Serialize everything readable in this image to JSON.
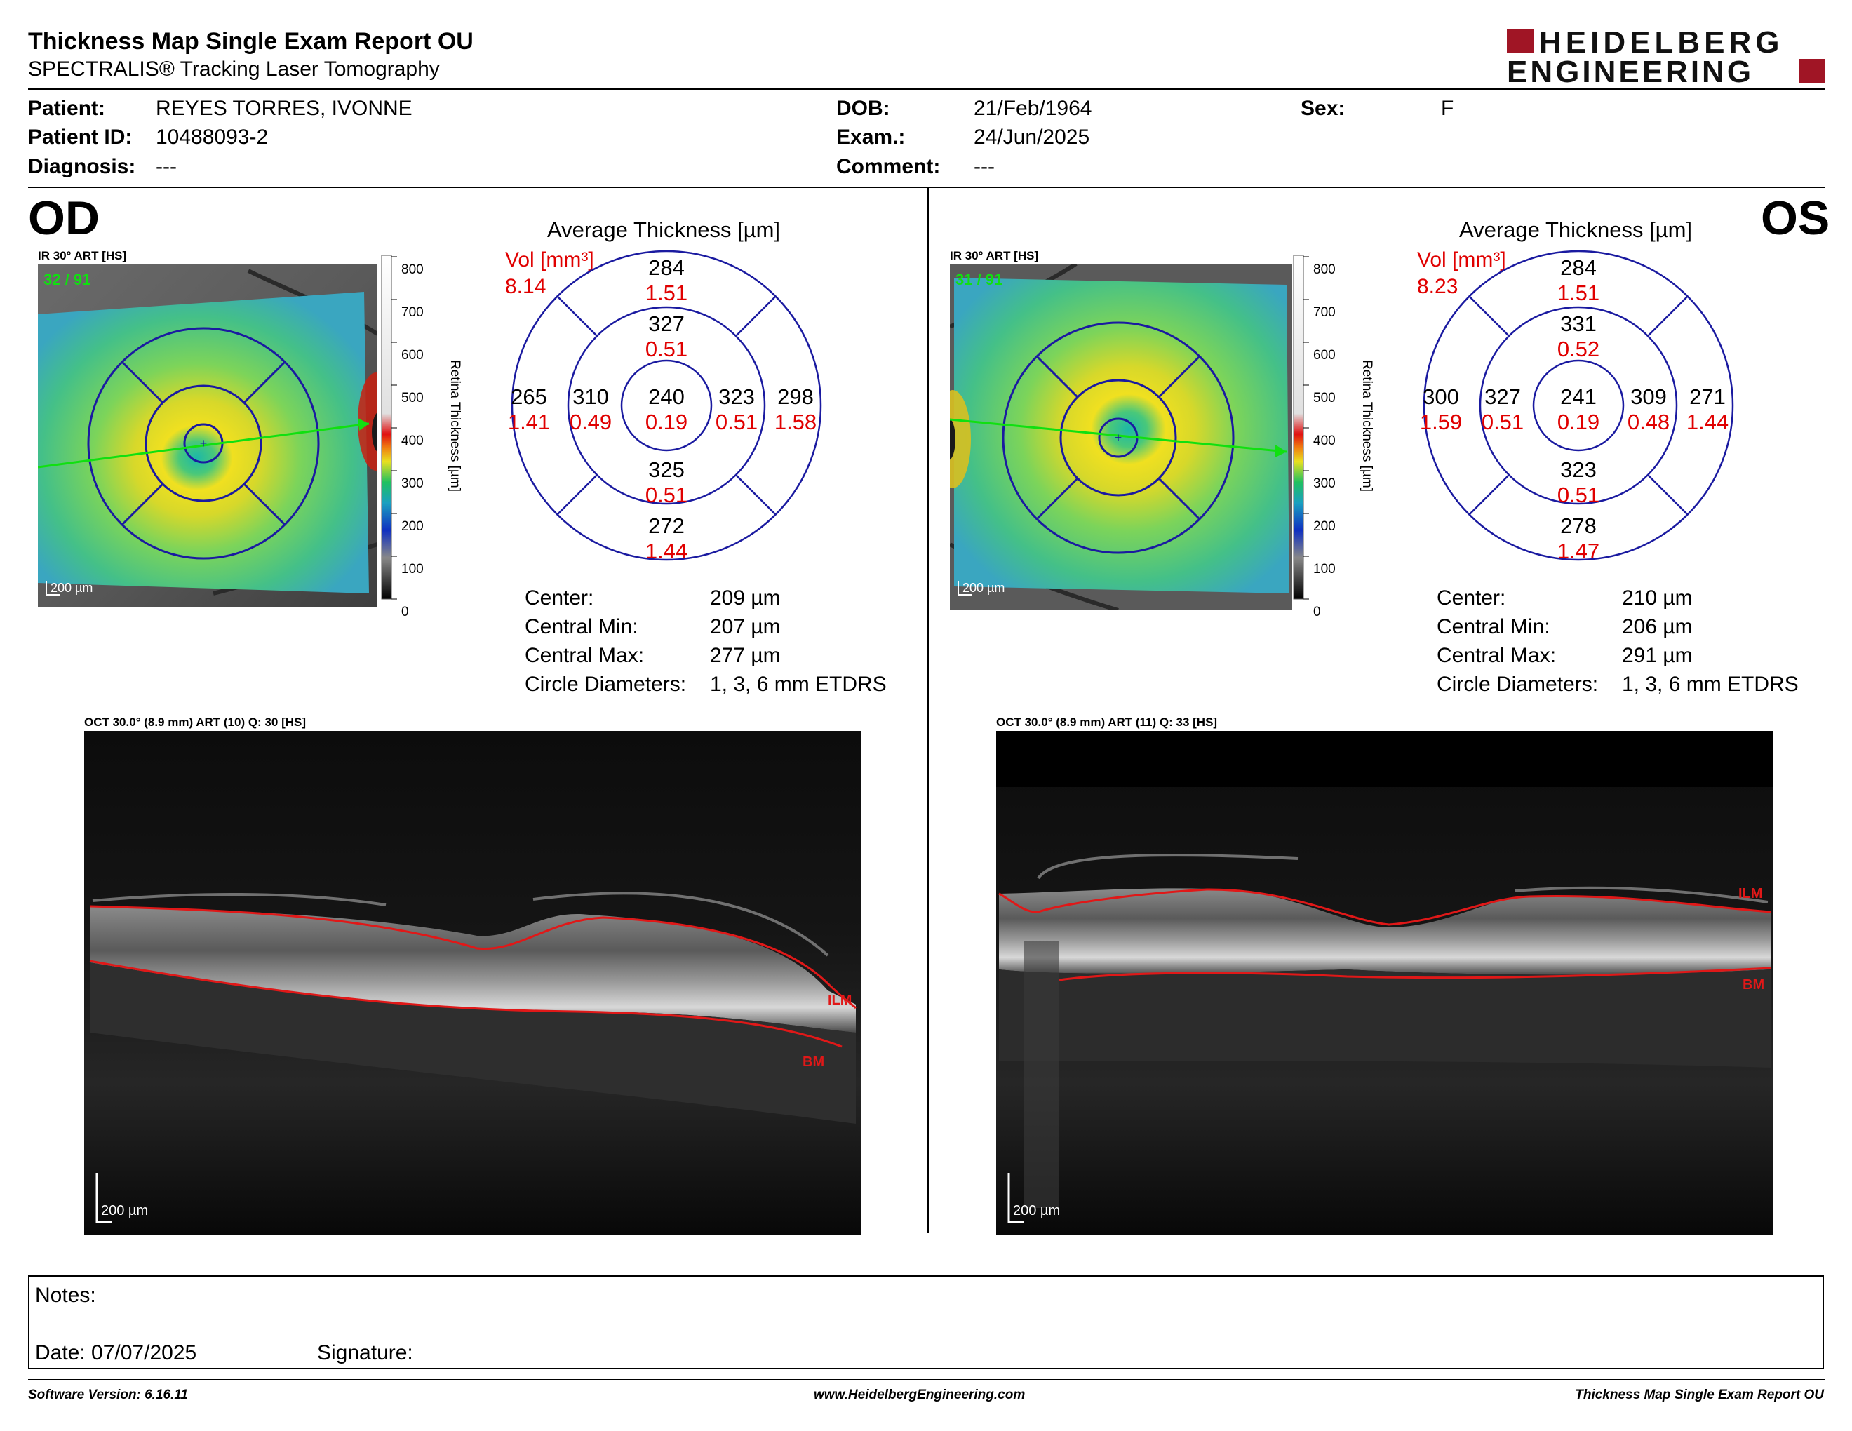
{
  "report": {
    "title": "Thickness Map Single Exam Report OU",
    "subtitle": "SPECTRALIS® Tracking Laser Tomography",
    "brand_line1": "HEIDELBERG",
    "brand_line2": "ENGINEERING"
  },
  "patient": {
    "patient_label": "Patient:",
    "patient_value": "REYES TORRES, IVONNE",
    "id_label": "Patient ID:",
    "id_value": "10488093-2",
    "diagnosis_label": "Diagnosis:",
    "diagnosis_value": "---",
    "dob_label": "DOB:",
    "dob_value": "21/Feb/1964",
    "exam_label": "Exam.:",
    "exam_value": "24/Jun/2025",
    "comment_label": "Comment:",
    "comment_value": "---",
    "sex_label": "Sex:",
    "sex_value": "F"
  },
  "eyes": {
    "od": {
      "label": "OD",
      "ir_label": "IR 30° ART [HS]",
      "ir_overlay": "32 / 91",
      "scale_text": "200 µm",
      "colorbar_ticks": [
        "800",
        "700",
        "600",
        "500",
        "400",
        "300",
        "200",
        "100",
        "0"
      ],
      "colorbar_title": "Retina  Thickness [µm]",
      "avg_title": "Average Thickness [µm]",
      "vol_label": "Vol [mm³]",
      "vol_value": "8.14",
      "sectors": {
        "outer_top": [
          "284",
          "1.51"
        ],
        "inner_top": [
          "327",
          "0.51"
        ],
        "outer_left": [
          "265",
          "1.41"
        ],
        "inner_left": [
          "310",
          "0.49"
        ],
        "center": [
          "240",
          "0.19"
        ],
        "inner_right": [
          "323",
          "0.51"
        ],
        "outer_right": [
          "298",
          "1.58"
        ],
        "inner_bottom": [
          "325",
          "0.51"
        ],
        "outer_bottom": [
          "272",
          "1.44"
        ]
      },
      "stats": {
        "center_label": "Center:",
        "center_value": "209 µm",
        "min_label": "Central Min:",
        "min_value": "207 µm",
        "max_label": "Central Max:",
        "max_value": "277 µm",
        "diam_label": "Circle Diameters:",
        "diam_value": "1, 3, 6 mm ETDRS"
      },
      "oct_label": "OCT 30.0° (8.9 mm) ART (10) Q: 30 [HS]",
      "oct_scale": "200 µm",
      "ilm": "ILM",
      "bm": "BM"
    },
    "os": {
      "label": "OS",
      "ir_label": "IR 30° ART [HS]",
      "ir_overlay": "31 / 91",
      "scale_text": "200 µm",
      "colorbar_ticks": [
        "800",
        "700",
        "600",
        "500",
        "400",
        "300",
        "200",
        "100",
        "0"
      ],
      "colorbar_title": "Retina  Thickness [µm]",
      "avg_title": "Average Thickness [µm]",
      "vol_label": "Vol [mm³]",
      "vol_value": "8.23",
      "sectors": {
        "outer_top": [
          "284",
          "1.51"
        ],
        "inner_top": [
          "331",
          "0.52"
        ],
        "outer_left": [
          "300",
          "1.59"
        ],
        "inner_left": [
          "327",
          "0.51"
        ],
        "center": [
          "241",
          "0.19"
        ],
        "inner_right": [
          "309",
          "0.48"
        ],
        "outer_right": [
          "271",
          "1.44"
        ],
        "inner_bottom": [
          "323",
          "0.51"
        ],
        "outer_bottom": [
          "278",
          "1.47"
        ]
      },
      "stats": {
        "center_label": "Center:",
        "center_value": "210 µm",
        "min_label": "Central Min:",
        "min_value": "206 µm",
        "max_label": "Central Max:",
        "max_value": "291 µm",
        "diam_label": "Circle Diameters:",
        "diam_value": "1, 3, 6 mm ETDRS"
      },
      "oct_label": "OCT 30.0° (8.9 mm) ART (11) Q: 33 [HS]",
      "oct_scale": "200 µm",
      "ilm": "ILM",
      "bm": "BM"
    }
  },
  "notes": {
    "notes_label": "Notes:",
    "date_label": "Date: 07/07/2025",
    "signature_label": "Signature:"
  },
  "footer": {
    "left": "Software Version: 6.16.11",
    "center": "www.HeidelbergEngineering.com",
    "right": "Thickness Map Single Exam Report OU"
  },
  "colors": {
    "brand_red": "#a01525",
    "grid_blue": "#1a1aa0",
    "value_red": "#e00000",
    "scan_green": "#10e010"
  }
}
